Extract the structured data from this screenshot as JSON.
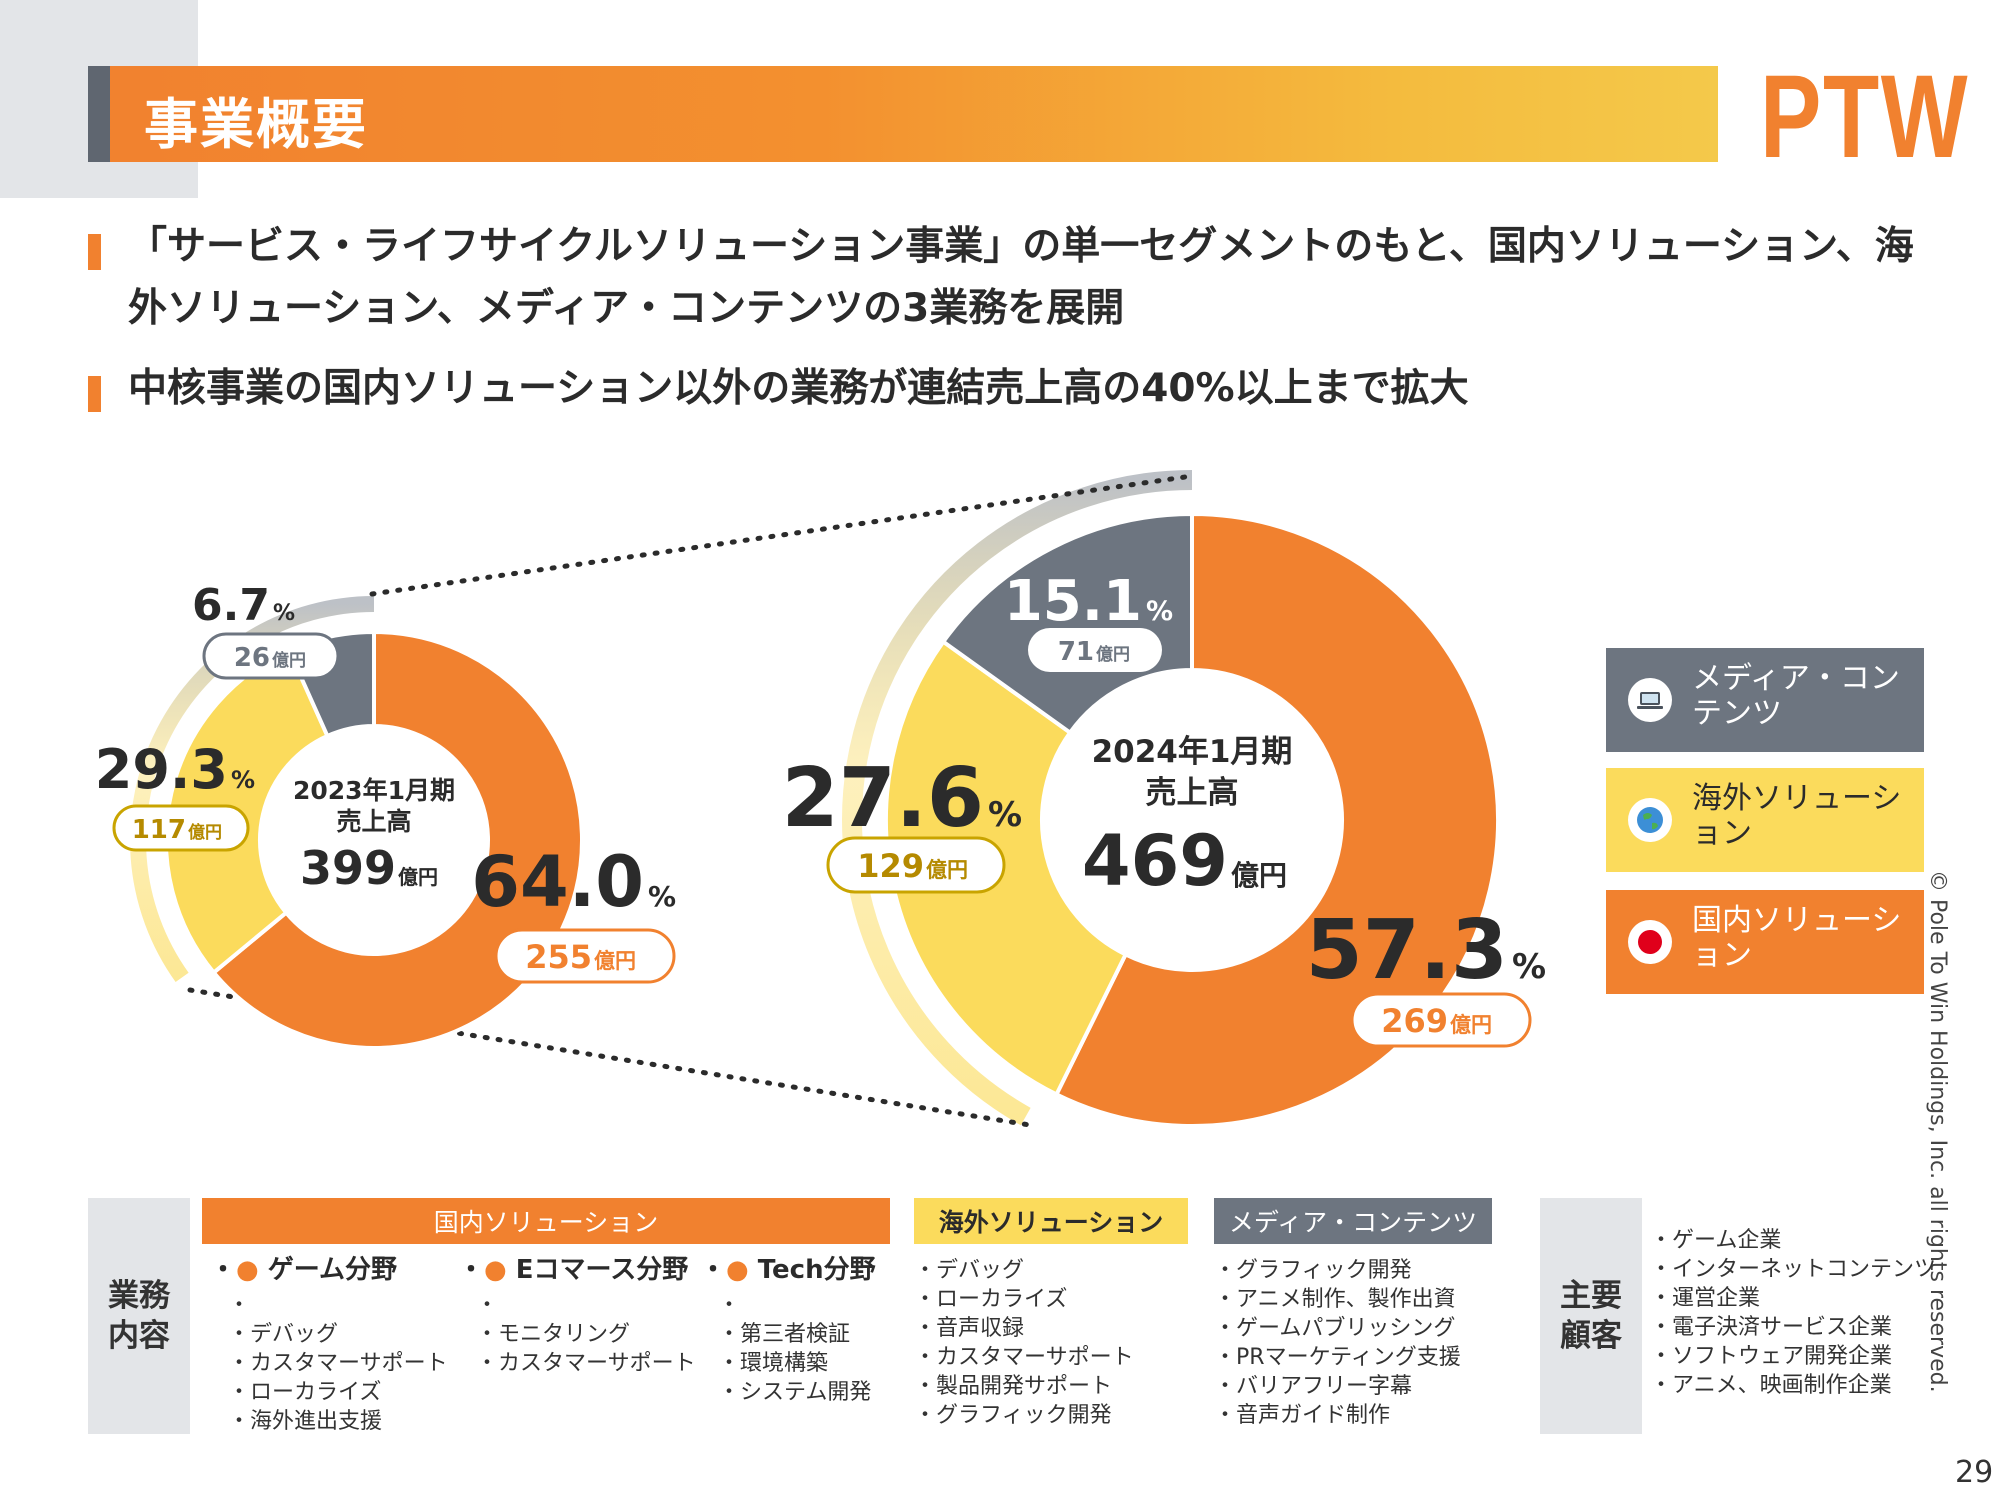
{
  "header": {
    "title": "事業概要",
    "logo": "PTW"
  },
  "bullets": [
    "「サービス・ライフサイクルソリューション事業」の単一セグメントのもと、国内ソリューション、海外ソリューション、メディア・コンテンツの3業務を展開",
    "中核事業の国内ソリューション以外の業務が連結売上高の40%以上まで拡大"
  ],
  "chart_data": [
    {
      "type": "pie",
      "center_period": "2023年1月期",
      "center_label": "売上高",
      "center_value": "399",
      "center_unit": "億円",
      "categories": [
        "国内ソリューション",
        "海外ソリューション",
        "メディア・コンテンツ"
      ],
      "values": [
        64.0,
        29.3,
        6.7
      ],
      "amounts": [
        255,
        117,
        26
      ],
      "pct_labels": [
        "64.0",
        "29.3",
        "6.7"
      ],
      "amount_labels": [
        "255",
        "117",
        "26"
      ],
      "unit_pct": "%",
      "unit_amount": "億円"
    },
    {
      "type": "pie",
      "center_period": "2024年1月期",
      "center_label": "売上高",
      "center_value": "469",
      "center_unit": "億円",
      "categories": [
        "国内ソリューション",
        "海外ソリューション",
        "メディア・コンテンツ"
      ],
      "values": [
        57.3,
        27.6,
        15.1
      ],
      "amounts": [
        269,
        129,
        71
      ],
      "pct_labels": [
        "57.3",
        "27.6",
        "15.1"
      ],
      "amount_labels": [
        "269",
        "129",
        "71"
      ],
      "unit_pct": "%",
      "unit_amount": "億円"
    }
  ],
  "colors": {
    "domestic": "#f1812f",
    "overseas": "#fbdb5c",
    "media": "#6d7580",
    "amount_overseas": "#b58a00"
  },
  "legend": [
    {
      "label": "メディア・コンテンツ",
      "icon": "laptop-icon"
    },
    {
      "label": "海外ソリューション",
      "icon": "globe-icon"
    },
    {
      "label": "国内ソリューション",
      "icon": "japan-flag-icon"
    }
  ],
  "table": {
    "business_label": "業務内容",
    "customers_label": "主要顧客",
    "domestic": {
      "header": "国内ソリューション",
      "fields": [
        {
          "title": "ゲーム分野",
          "items": [
            "デバッグ",
            "カスタマーサポート",
            "ローカライズ",
            "海外進出支援"
          ]
        },
        {
          "title": "Eコマース分野",
          "items": [
            "モニタリング",
            "カスタマーサポート"
          ]
        },
        {
          "title": "Tech分野",
          "items": [
            "第三者検証",
            "環境構築",
            "システム開発"
          ]
        }
      ]
    },
    "overseas": {
      "header": "海外ソリューション",
      "items": [
        "デバッグ",
        "ローカライズ",
        "音声収録",
        "カスタマーサポート",
        "製品開発サポート",
        "グラフィック開発"
      ]
    },
    "media": {
      "header": "メディア・コンテンツ",
      "items": [
        "グラフィック開発",
        "アニメ制作、製作出資",
        "ゲームパブリッシング",
        "PRマーケティング支援",
        "バリアフリー字幕",
        "音声ガイド制作"
      ]
    },
    "customers": [
      "ゲーム企業",
      "インターネットコンテンツ",
      "運営企業",
      "電子決済サービス企業",
      "ソフトウェア開発企業",
      "アニメ、映画制作企業"
    ]
  },
  "copyright": "© Pole To Win Holdings, Inc. all rights reserved.",
  "page_number": "29"
}
